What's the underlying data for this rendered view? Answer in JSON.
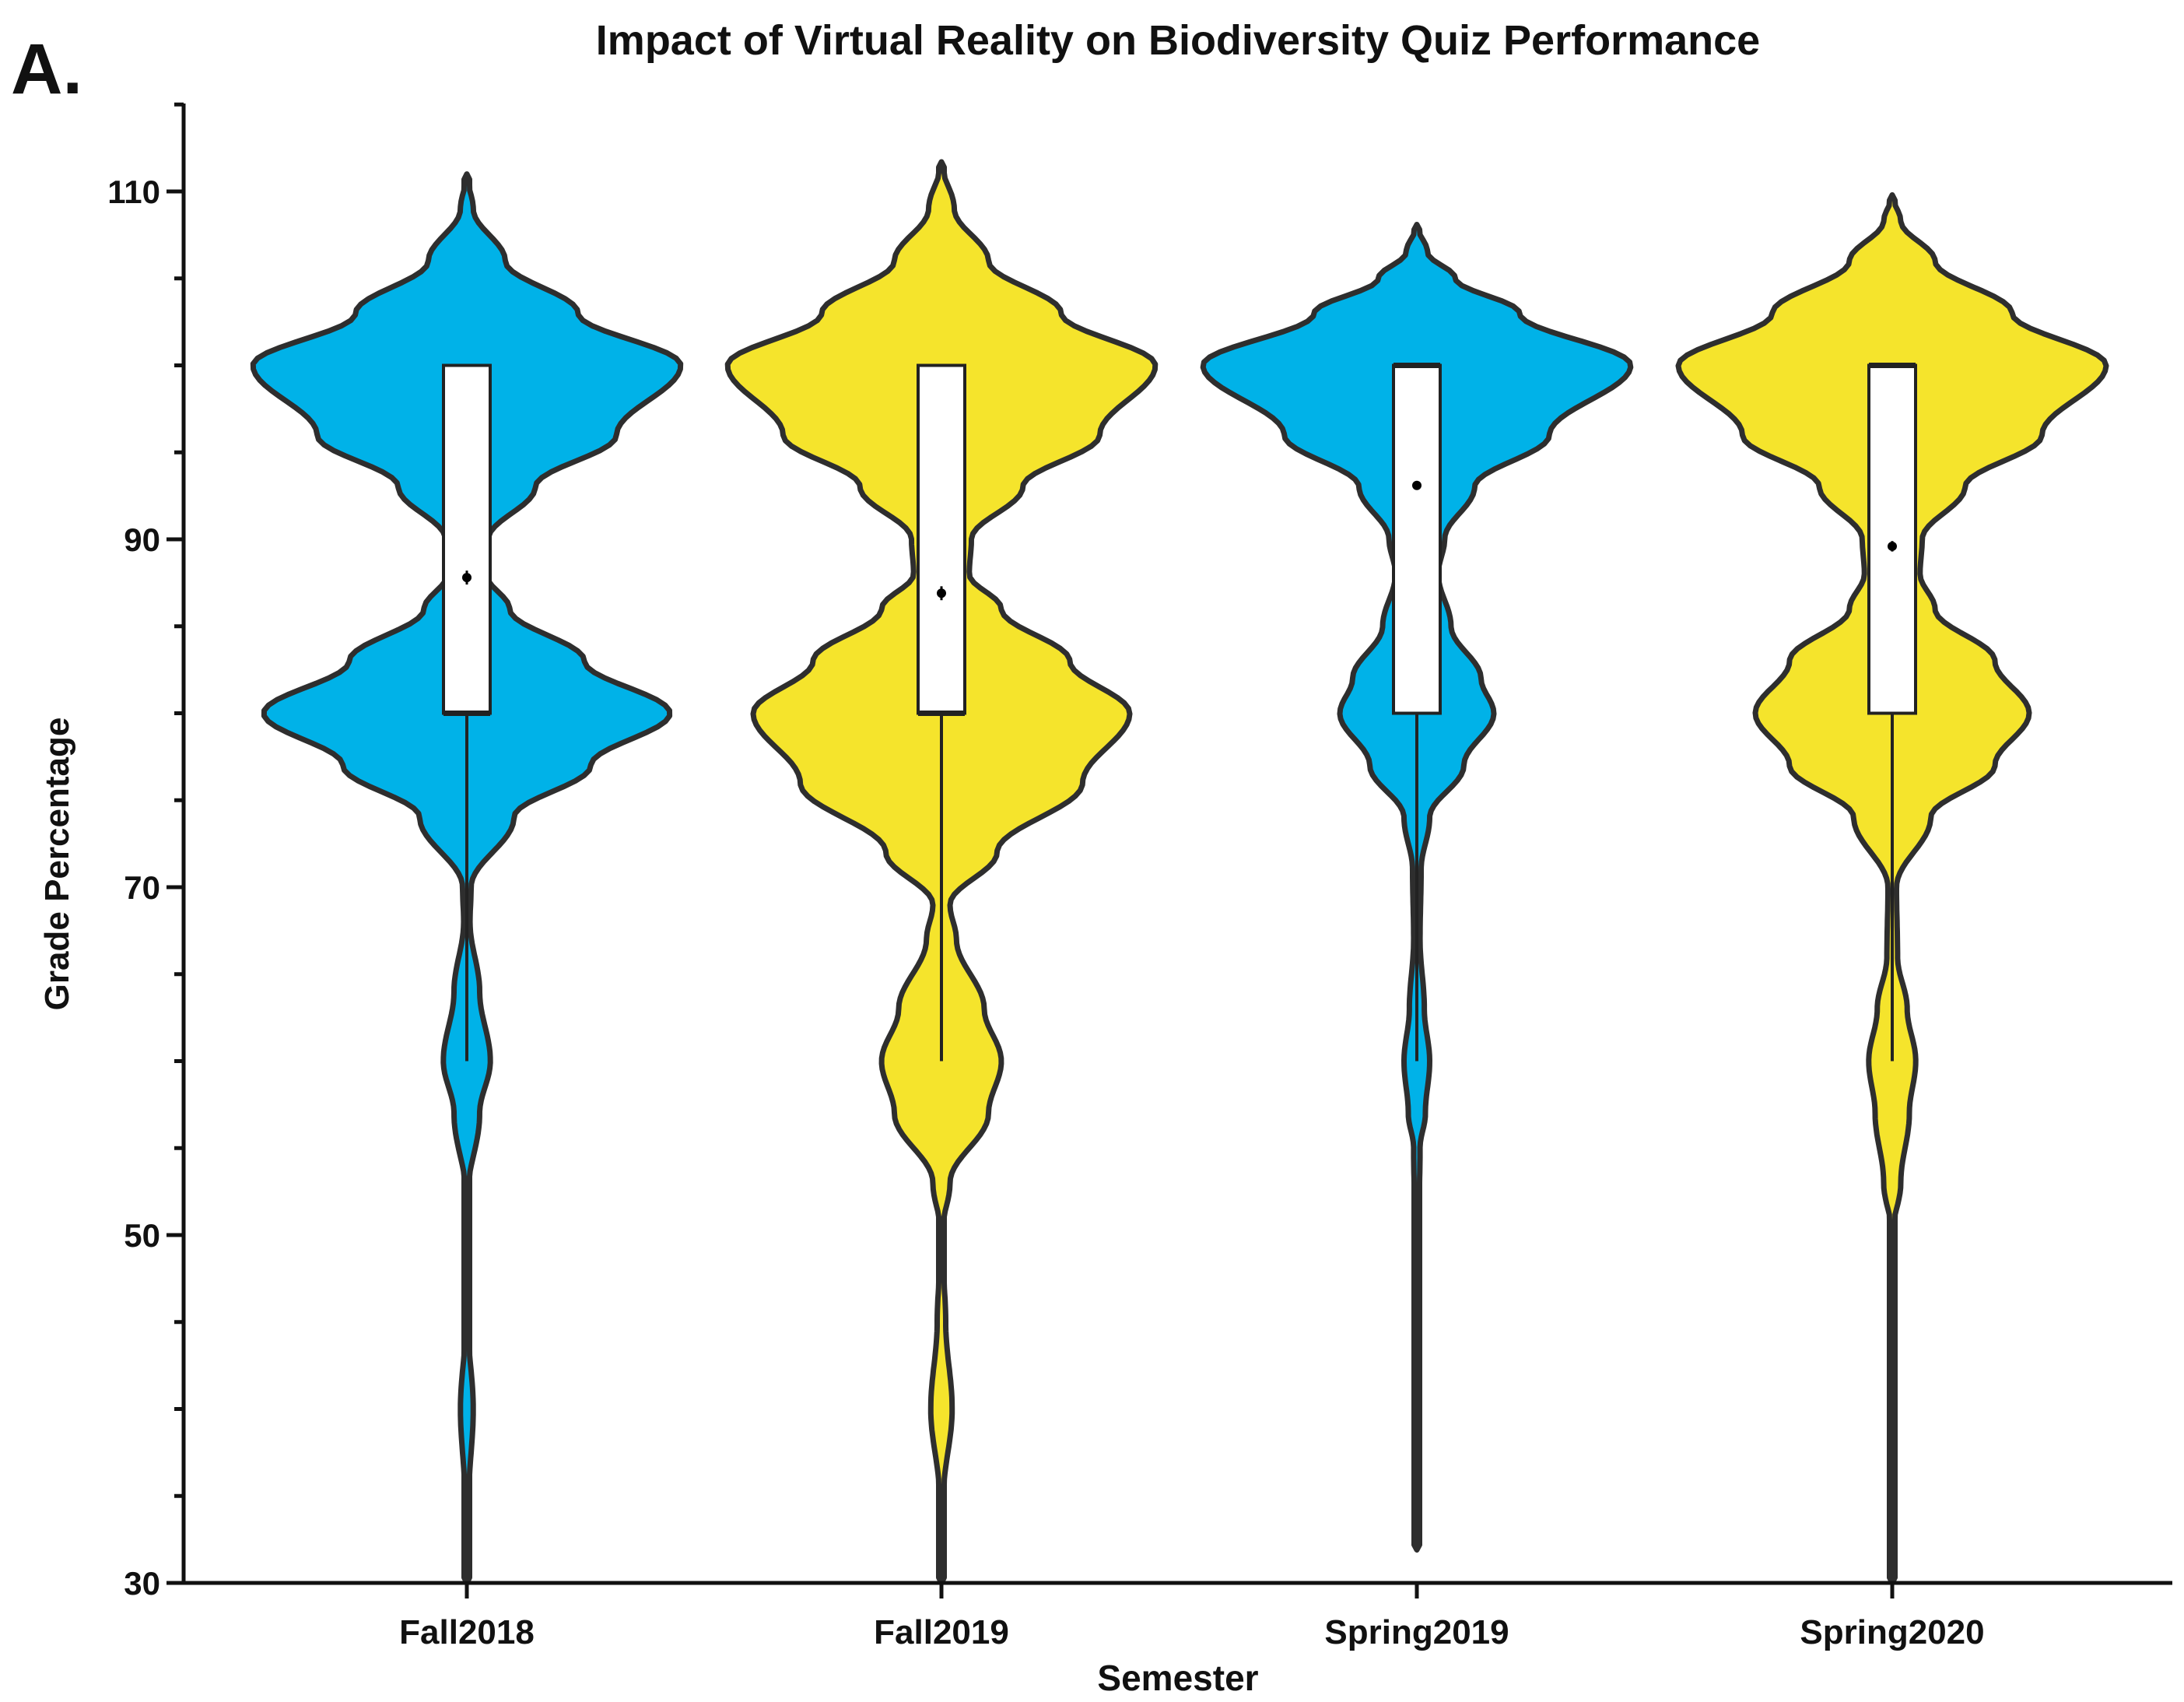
{
  "panel_label": "A.",
  "chart_data": {
    "type": "violin",
    "title": "Impact of Virtual Reality on Biodiversity Quiz Performance",
    "xlabel": "Semester",
    "ylabel": "Grade Percentage",
    "ylim": [
      30,
      115
    ],
    "yticks": [
      30,
      50,
      70,
      90,
      110
    ],
    "ytick_labels": [
      "30",
      "50",
      "70",
      "90",
      "110"
    ],
    "grid": false,
    "legend": "none",
    "categories": [
      "Fall2018",
      "Fall2019",
      "Spring2019",
      "Spring2020"
    ],
    "colors": {
      "Fall2018": "#00b2e8",
      "Fall2019": "#f5e42c",
      "Spring2019": "#00b2e8",
      "Spring2020": "#f5e42c",
      "outline": "#2e2e2e",
      "box": "#ffffff"
    },
    "violins": [
      {
        "name": "Fall2018",
        "min": 30,
        "max": 111,
        "density_profile": [
          [
            30,
            0.0
          ],
          [
            35,
            0.01
          ],
          [
            40,
            0.03
          ],
          [
            45,
            0.005
          ],
          [
            52,
            0.0
          ],
          [
            57,
            0.06
          ],
          [
            60,
            0.11
          ],
          [
            64,
            0.06
          ],
          [
            68,
            0.015
          ],
          [
            70,
            0.02
          ],
          [
            74,
            0.22
          ],
          [
            77,
            0.58
          ],
          [
            80,
            0.95
          ],
          [
            83,
            0.55
          ],
          [
            86,
            0.2
          ],
          [
            88,
            0.09
          ],
          [
            90,
            0.1
          ],
          [
            93,
            0.32
          ],
          [
            96,
            0.7
          ],
          [
            100,
            1.0
          ],
          [
            103,
            0.52
          ],
          [
            106,
            0.18
          ],
          [
            109,
            0.03
          ],
          [
            111,
            0.0
          ]
        ],
        "box": {
          "q1": 80,
          "median": 80,
          "q3": 100,
          "whisker_low": 60,
          "whisker_high": 100
        },
        "mean": 87.8,
        "mean_error": 0.4
      },
      {
        "name": "Fall2019",
        "min": 30,
        "max": 111.7,
        "density_profile": [
          [
            30,
            0.0
          ],
          [
            35,
            0.01
          ],
          [
            40,
            0.05
          ],
          [
            45,
            0.02
          ],
          [
            50,
            0.0
          ],
          [
            53,
            0.04
          ],
          [
            57,
            0.22
          ],
          [
            60,
            0.28
          ],
          [
            63,
            0.2
          ],
          [
            67,
            0.07
          ],
          [
            69,
            0.04
          ],
          [
            72,
            0.26
          ],
          [
            76,
            0.66
          ],
          [
            80,
            0.88
          ],
          [
            83,
            0.6
          ],
          [
            86,
            0.28
          ],
          [
            88,
            0.13
          ],
          [
            90,
            0.14
          ],
          [
            93,
            0.38
          ],
          [
            96,
            0.74
          ],
          [
            100,
            1.0
          ],
          [
            103,
            0.56
          ],
          [
            106,
            0.22
          ],
          [
            109,
            0.06
          ],
          [
            111.7,
            0.0
          ]
        ],
        "box": {
          "q1": 80,
          "median": 80,
          "q3": 100,
          "whisker_low": 60,
          "whisker_high": 100
        },
        "mean": 86.9,
        "mean_error": 0.4
      },
      {
        "name": "Spring2019",
        "min": 31.9,
        "max": 108.1,
        "density_profile": [
          [
            31.9,
            0.0
          ],
          [
            40,
            0.008
          ],
          [
            50,
            0.008
          ],
          [
            55,
            0.015
          ],
          [
            57,
            0.04
          ],
          [
            60,
            0.06
          ],
          [
            63,
            0.035
          ],
          [
            67,
            0.015
          ],
          [
            71,
            0.02
          ],
          [
            74,
            0.06
          ],
          [
            77,
            0.22
          ],
          [
            80,
            0.36
          ],
          [
            82,
            0.3
          ],
          [
            85,
            0.16
          ],
          [
            88,
            0.1
          ],
          [
            90,
            0.13
          ],
          [
            93,
            0.27
          ],
          [
            96,
            0.62
          ],
          [
            100,
            1.0
          ],
          [
            103,
            0.48
          ],
          [
            105,
            0.18
          ],
          [
            106.5,
            0.05
          ],
          [
            108.1,
            0.0
          ]
        ],
        "box": {
          "q1": 80,
          "median": 100,
          "q3": 100,
          "whisker_low": 60,
          "whisker_high": 100
        },
        "mean": 93.1,
        "mean_error": 0.25
      },
      {
        "name": "Spring2020",
        "min": 30,
        "max": 109.8,
        "density_profile": [
          [
            30,
            0.0
          ],
          [
            40,
            0.01
          ],
          [
            45,
            0.01
          ],
          [
            50,
            0.0
          ],
          [
            53,
            0.04
          ],
          [
            57,
            0.08
          ],
          [
            60,
            0.11
          ],
          [
            63,
            0.07
          ],
          [
            66,
            0.025
          ],
          [
            70,
            0.02
          ],
          [
            74,
            0.18
          ],
          [
            77,
            0.48
          ],
          [
            80,
            0.64
          ],
          [
            83,
            0.48
          ],
          [
            86,
            0.2
          ],
          [
            88,
            0.13
          ],
          [
            90,
            0.14
          ],
          [
            93,
            0.34
          ],
          [
            96,
            0.7
          ],
          [
            100,
            1.0
          ],
          [
            103,
            0.56
          ],
          [
            106,
            0.2
          ],
          [
            108.3,
            0.04
          ],
          [
            109.8,
            0.0
          ]
        ],
        "box": {
          "q1": 80,
          "median": 100,
          "q3": 100,
          "whisker_low": 60,
          "whisker_high": 100
        },
        "mean": 89.6,
        "mean_error": 0.3
      }
    ]
  }
}
